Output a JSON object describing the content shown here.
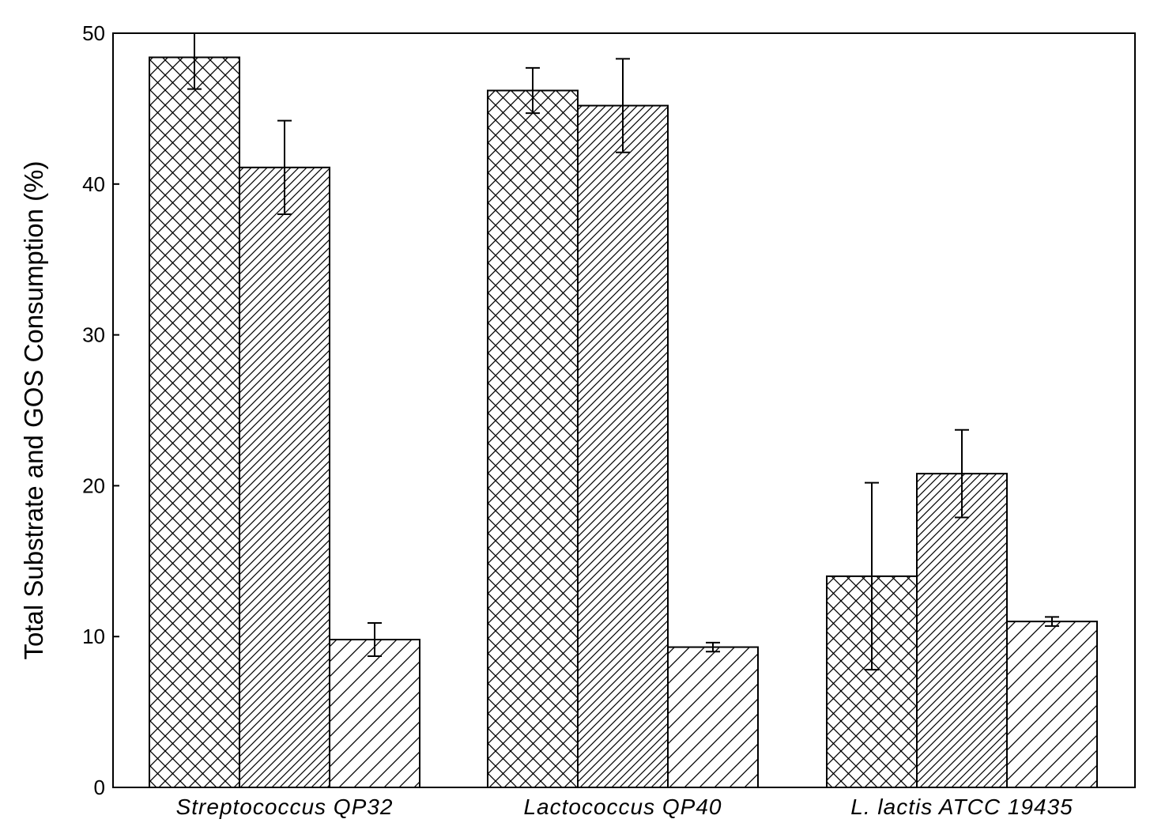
{
  "chart_data": {
    "type": "bar",
    "title": "",
    "xlabel": "",
    "ylabel": "Total Substrate and GOS Consumption (%)",
    "ylim": [
      0,
      50
    ],
    "yticks": [
      "0",
      "10",
      "20",
      "30",
      "40",
      "50"
    ],
    "grid": false,
    "legend": "none",
    "categories": [
      "Streptococcus QP32",
      "Lactococcus QP40",
      "L. lactis ATCC 19435"
    ],
    "series": [
      {
        "pattern": "crosshatch",
        "values": [
          48.4,
          46.2,
          14.0
        ],
        "errors": [
          2.1,
          1.5,
          6.2
        ]
      },
      {
        "pattern": "dense-diagonal",
        "values": [
          41.1,
          45.2,
          20.8
        ],
        "errors": [
          3.1,
          3.1,
          2.9
        ]
      },
      {
        "pattern": "sparse-diagonal",
        "values": [
          9.8,
          9.3,
          11.0
        ],
        "errors": [
          1.1,
          0.3,
          0.3
        ]
      }
    ],
    "colors": {
      "stroke": "#000000",
      "background": "#ffffff"
    }
  }
}
